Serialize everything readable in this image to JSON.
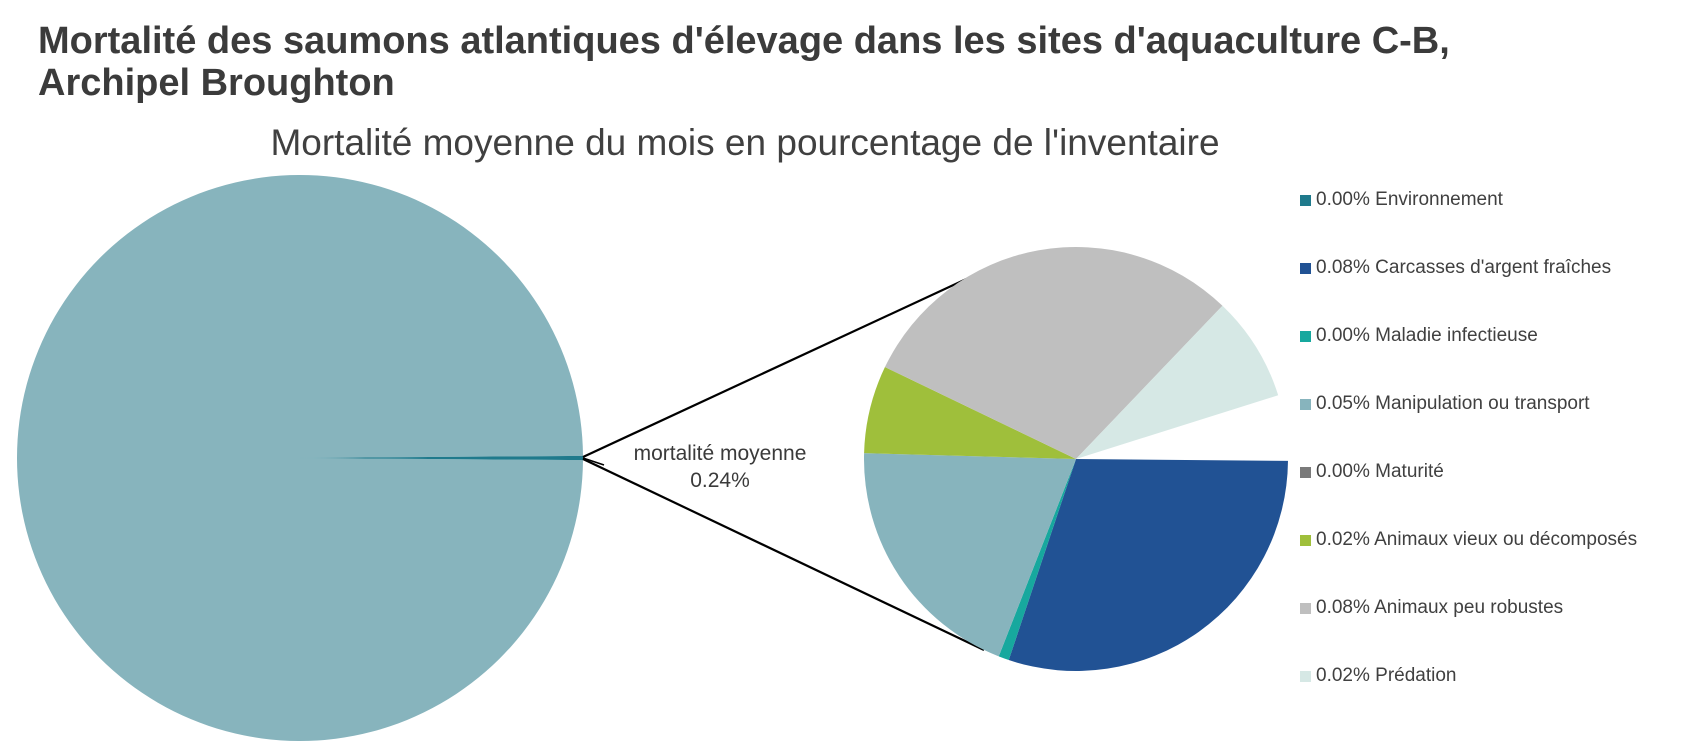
{
  "title": "Mortalité des saumons atlantiques d'élevage dans les sites d'aquaculture C-B, Archipel Broughton",
  "chart_data": {
    "type": "pie",
    "title": "Mortalité moyenne du mois en pourcentage de l'inventaire",
    "grouped_slice": {
      "label": "mortalité moyenne",
      "value_text": "0.24%",
      "value": 0.24
    },
    "slices": [
      {
        "name": "Environnement",
        "label": "0.00% Environnement",
        "value": 0.0,
        "fraction": 0.0,
        "color": "#1f7a8c"
      },
      {
        "name": "Carcasses d'argent fraîches",
        "label": "0.08% Carcasses d'argent fraîches",
        "value": 0.08,
        "fraction": 0.3,
        "color": "#215294"
      },
      {
        "name": "Maladie infectieuse",
        "label": "0.00% Maladie infectieuse",
        "value": 0.0,
        "fraction": 0.008,
        "color": "#17a89e"
      },
      {
        "name": "Manipulation ou transport",
        "label": "0.05% Manipulation ou transport",
        "value": 0.05,
        "fraction": 0.195,
        "color": "#87b4bd"
      },
      {
        "name": "Maturité",
        "label": "0.00% Maturité",
        "value": 0.0,
        "fraction": 0.0,
        "color": "#7a7a7a"
      },
      {
        "name": "Animaux vieux ou décomposés",
        "label": "0.02% Animaux vieux ou décomposés",
        "value": 0.02,
        "fraction": 0.067,
        "color": "#9fbf3b"
      },
      {
        "name": "Animaux peu robustes",
        "label": "0.08% Animaux peu robustes",
        "value": 0.08,
        "fraction": 0.3,
        "color": "#bfbfbf"
      },
      {
        "name": "Prédation",
        "label": "0.02% Prédation",
        "value": 0.02,
        "fraction": 0.08,
        "color": "#d6e8e5"
      }
    ],
    "remainder_color": "#87b4bd",
    "legend_position": "right"
  }
}
